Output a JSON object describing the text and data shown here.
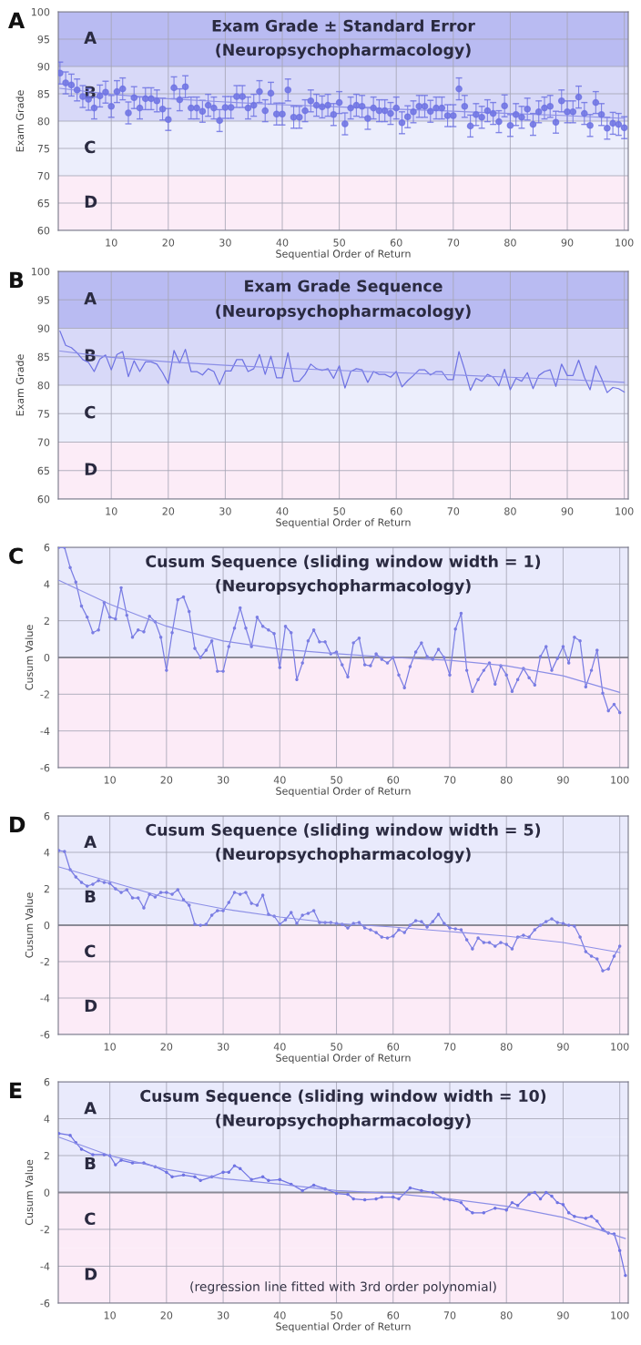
{
  "chart_data": [
    {
      "type": "scatter",
      "title": "Exam Grade ± Standard Error",
      "subtitle": "(Neuropsychopharmacology)",
      "xlabel": "Sequential Order of Return",
      "ylabel": "Exam Grade",
      "annotations": [
        "A"
      ],
      "x": [
        1,
        2,
        3,
        4,
        5,
        6,
        7,
        8,
        9,
        10,
        11,
        12,
        13,
        14,
        15,
        16,
        17,
        18,
        19,
        20,
        21,
        22,
        23,
        24,
        25,
        26,
        27,
        28,
        29,
        30,
        31,
        32,
        33,
        34,
        35,
        36,
        37,
        38,
        39,
        40,
        41,
        42,
        43,
        44,
        45,
        46,
        47,
        48,
        49,
        50,
        51,
        52,
        53,
        54,
        55,
        56,
        57,
        58,
        59,
        60,
        61,
        62,
        63,
        64,
        65,
        66,
        67,
        68,
        69,
        70,
        71,
        72,
        73,
        74,
        75,
        76,
        77,
        78,
        79,
        80,
        81,
        82,
        83,
        84,
        85,
        86,
        87,
        88,
        89,
        90,
        91,
        92,
        93,
        94,
        95,
        96,
        97,
        98,
        99,
        100
      ],
      "series": [
        {
          "marker": "circle",
          "color": "#6f73e3",
          "values": [
            88.8,
            87,
            86.6,
            85.7,
            84.5,
            84,
            82.4,
            84.6,
            85.3,
            82.7,
            85.4,
            85.9,
            81.5,
            84.3,
            82.4,
            84.1,
            84.1,
            83.7,
            82.2,
            80.3,
            86.1,
            83.9,
            86.3,
            82.4,
            82.4,
            81.8,
            82.9,
            82.4,
            80.1,
            82.5,
            82.5,
            84.5,
            84.5,
            82.4,
            82.9,
            85.4,
            81.9,
            85.1,
            81.3,
            81.3,
            85.7,
            80.7,
            80.7,
            81.9,
            83.7,
            82.9,
            82.6,
            82.9,
            81.2,
            83.4,
            79.5,
            82.4,
            82.9,
            82.7,
            80.5,
            82.4,
            81.9,
            81.9,
            81.4,
            82.4,
            79.7,
            80.8,
            81.7,
            82.7,
            82.7,
            81.8,
            82.4,
            82.4,
            81.0,
            81.0,
            85.9,
            82.7,
            79.1,
            81.2,
            80.7,
            81.9,
            81.4,
            79.9,
            82.8,
            79.2,
            81.2,
            80.7,
            82.2,
            79.4,
            81.7,
            82.4,
            82.7,
            79.8,
            83.7,
            81.7,
            81.7,
            84.4,
            81.4,
            79.2,
            83.4,
            81.2,
            78.7,
            79.6,
            79.4,
            78.8
          ],
          "errors": [
            2,
            2,
            2,
            2,
            2,
            2,
            2,
            2,
            2,
            2,
            2,
            2,
            2,
            2,
            2,
            2,
            2,
            2,
            2,
            2,
            2,
            2,
            2,
            2,
            2,
            2,
            2,
            2,
            2,
            2,
            2,
            2,
            2,
            2,
            2,
            2,
            2,
            2,
            2,
            2,
            2,
            2,
            2,
            2,
            2,
            2,
            2,
            2,
            2,
            2,
            2,
            2,
            2,
            2,
            2,
            2,
            2,
            2,
            2,
            2,
            2,
            2,
            2,
            2,
            2,
            2,
            2,
            2,
            2,
            2,
            2,
            2,
            2,
            2,
            2,
            2,
            2,
            2,
            2,
            2,
            2,
            2,
            2,
            2,
            2,
            2,
            2,
            2,
            2,
            2,
            2,
            2,
            2,
            2,
            2,
            2,
            2,
            2,
            2,
            2
          ]
        },
        {
          "type": "line",
          "marker": "none",
          "color": "#8c8fe6",
          "x": [
            1,
            10,
            20,
            30,
            40,
            50,
            60,
            70,
            80,
            90,
            100
          ],
          "values": [
            86,
            84.9,
            84.1,
            83.5,
            83,
            82.6,
            82.2,
            81.8,
            81.4,
            81,
            80.5
          ]
        }
      ],
      "bands": [
        {
          "axis": "y",
          "from": 90,
          "to": 100,
          "label": "A",
          "color": "#b9bbf2"
        },
        {
          "axis": "y",
          "from": 80,
          "to": 90,
          "label": "B",
          "color": "#d8d9f8"
        },
        {
          "axis": "y",
          "from": 70,
          "to": 80,
          "label": "C",
          "color": "#eceefc"
        },
        {
          "axis": "y",
          "from": 60,
          "to": 70,
          "label": "D",
          "color": "#fcecf7"
        }
      ],
      "xlim": [
        0.7,
        100.7
      ],
      "ylim": [
        60,
        100
      ],
      "xticks": [
        10,
        20,
        30,
        40,
        50,
        60,
        70,
        80,
        90,
        100
      ],
      "yticks": [
        60,
        65,
        70,
        75,
        80,
        85,
        90,
        95,
        100
      ],
      "grid": true
    },
    {
      "type": "line",
      "title": "Exam Grade Sequence",
      "subtitle": "(Neuropsychopharmacology)",
      "xlabel": "Sequential Order of Return",
      "ylabel": "Exam Grade",
      "annotations": [
        "B"
      ],
      "x": [
        1,
        2,
        3,
        4,
        5,
        6,
        7,
        8,
        9,
        10,
        11,
        12,
        13,
        14,
        15,
        16,
        17,
        18,
        19,
        20,
        21,
        22,
        23,
        24,
        25,
        26,
        27,
        28,
        29,
        30,
        31,
        32,
        33,
        34,
        35,
        36,
        37,
        38,
        39,
        40,
        41,
        42,
        43,
        44,
        45,
        46,
        47,
        48,
        49,
        50,
        51,
        52,
        53,
        54,
        55,
        56,
        57,
        58,
        59,
        60,
        61,
        62,
        63,
        64,
        65,
        66,
        67,
        68,
        69,
        70,
        71,
        72,
        73,
        74,
        75,
        76,
        77,
        78,
        79,
        80,
        81,
        82,
        83,
        84,
        85,
        86,
        87,
        88,
        89,
        90,
        91,
        92,
        93,
        94,
        95,
        96,
        97,
        98,
        99,
        100
      ],
      "series": [
        {
          "marker": "none",
          "color": "#6f73e3",
          "values": [
            89.5,
            87,
            86.6,
            85.7,
            84.5,
            84,
            82.4,
            84.6,
            85.3,
            82.7,
            85.4,
            85.9,
            81.5,
            84.3,
            82.4,
            84.1,
            84.1,
            83.7,
            82.2,
            80.3,
            86.1,
            83.9,
            86.3,
            82.4,
            82.4,
            81.8,
            82.9,
            82.4,
            80.1,
            82.5,
            82.5,
            84.5,
            84.5,
            82.4,
            82.9,
            85.4,
            81.9,
            85.1,
            81.3,
            81.3,
            85.7,
            80.7,
            80.7,
            81.9,
            83.7,
            82.9,
            82.6,
            82.9,
            81.2,
            83.4,
            79.5,
            82.4,
            82.9,
            82.7,
            80.5,
            82.4,
            81.9,
            81.9,
            81.4,
            82.4,
            79.7,
            80.8,
            81.7,
            82.7,
            82.7,
            81.8,
            82.4,
            82.4,
            81.0,
            81.0,
            85.9,
            82.7,
            79.1,
            81.2,
            80.7,
            81.9,
            81.4,
            79.9,
            82.8,
            79.2,
            81.2,
            80.7,
            82.2,
            79.4,
            81.7,
            82.4,
            82.7,
            79.8,
            83.7,
            81.7,
            81.7,
            84.4,
            81.4,
            79.2,
            83.4,
            81.2,
            78.7,
            79.6,
            79.4,
            78.8
          ]
        },
        {
          "type": "line",
          "marker": "none",
          "color": "#8c8fe6",
          "x": [
            1,
            10,
            20,
            30,
            40,
            50,
            60,
            70,
            80,
            90,
            100
          ],
          "values": [
            86,
            84.9,
            84.1,
            83.5,
            83,
            82.6,
            82.2,
            81.8,
            81.4,
            81,
            80.5
          ]
        }
      ],
      "bands": [
        {
          "axis": "y",
          "from": 90,
          "to": 100,
          "label": "A",
          "color": "#b9bbf2"
        },
        {
          "axis": "y",
          "from": 80,
          "to": 90,
          "label": "B",
          "color": "#d8d9f8"
        },
        {
          "axis": "y",
          "from": 70,
          "to": 80,
          "label": "C",
          "color": "#eceefc"
        },
        {
          "axis": "y",
          "from": 60,
          "to": 70,
          "label": "D",
          "color": "#fcecf7"
        }
      ],
      "xlim": [
        0.7,
        100.7
      ],
      "ylim": [
        60,
        100
      ],
      "xticks": [
        10,
        20,
        30,
        40,
        50,
        60,
        70,
        80,
        90,
        100
      ],
      "yticks": [
        60,
        65,
        70,
        75,
        80,
        85,
        90,
        95,
        100
      ],
      "grid": true
    },
    {
      "type": "line",
      "title": "Cusum Sequence (sliding window width = 1)",
      "subtitle": "(Neuropsychopharmacology)",
      "xlabel": "Sequential Order of Return",
      "ylabel": "Cusum Value",
      "annotations": [
        "C"
      ],
      "x": [
        1,
        2,
        3,
        4,
        5,
        6,
        7,
        8,
        9,
        10,
        11,
        12,
        13,
        14,
        15,
        16,
        17,
        18,
        19,
        20,
        21,
        22,
        23,
        24,
        25,
        26,
        27,
        28,
        29,
        30,
        31,
        32,
        33,
        34,
        35,
        36,
        37,
        38,
        39,
        40,
        41,
        42,
        43,
        44,
        45,
        46,
        47,
        48,
        49,
        50,
        51,
        52,
        53,
        54,
        55,
        56,
        57,
        58,
        59,
        60,
        61,
        62,
        63,
        64,
        65,
        66,
        67,
        68,
        69,
        70,
        71,
        72,
        73,
        74,
        75,
        76,
        77,
        78,
        79,
        80,
        81,
        82,
        83,
        84,
        85,
        86,
        87,
        88,
        89,
        90,
        91,
        92,
        93,
        94,
        95,
        96,
        97,
        98,
        99,
        100
      ],
      "series": [
        {
          "marker": "circle",
          "color": "#7a7de3",
          "values": [
            6.0,
            6.0,
            4.9,
            4.1,
            2.8,
            2.2,
            1.35,
            1.5,
            3.0,
            2.2,
            2.1,
            3.8,
            2.3,
            1.1,
            1.5,
            1.4,
            2.25,
            1.95,
            1.1,
            -0.7,
            1.35,
            3.15,
            3.3,
            2.5,
            0.5,
            0.0,
            0.4,
            0.9,
            -0.75,
            -0.75,
            0.6,
            1.6,
            2.7,
            1.6,
            0.6,
            2.2,
            1.7,
            1.5,
            1.3,
            -0.55,
            1.7,
            1.35,
            -1.2,
            -0.3,
            0.9,
            1.5,
            0.85,
            0.85,
            0.2,
            0.3,
            -0.4,
            -1.05,
            0.8,
            1.05,
            -0.4,
            -0.45,
            0.2,
            -0.1,
            -0.3,
            0.0,
            -0.95,
            -1.65,
            -0.5,
            0.3,
            0.8,
            0.05,
            -0.1,
            0.45,
            0.0,
            -0.95,
            1.55,
            2.4,
            -0.7,
            -1.85,
            -1.2,
            -0.7,
            -0.3,
            -1.45,
            -0.45,
            -0.95,
            -1.85,
            -1.2,
            -0.6,
            -1.1,
            -1.5,
            0.05,
            0.6,
            -0.7,
            -0.05,
            0.6,
            -0.3,
            1.1,
            0.9,
            -1.6,
            -0.7,
            0.4,
            -1.95,
            -2.9,
            -2.55,
            -3.0
          ]
        },
        {
          "type": "line",
          "marker": "none",
          "color": "#8c8fe6",
          "x": [
            1,
            10,
            20,
            30,
            40,
            50,
            60,
            70,
            80,
            90,
            100
          ],
          "values": [
            4.2,
            2.9,
            1.7,
            0.9,
            0.45,
            0.2,
            0.0,
            -0.15,
            -0.45,
            -1.0,
            -1.9
          ]
        }
      ],
      "bands": [
        {
          "axis": "y",
          "from": 0,
          "to": 6,
          "color": "#e9eafc"
        },
        {
          "axis": "y",
          "from": -6,
          "to": 0,
          "color": "#fcebf7"
        }
      ],
      "ref_lines": [
        {
          "axis": "y",
          "value": 0,
          "color": "#8a8a96"
        }
      ],
      "xlim": [
        0.9,
        101.5
      ],
      "ylim": [
        -6,
        6
      ],
      "xticks": [
        10,
        20,
        30,
        40,
        50,
        60,
        70,
        80,
        90,
        100
      ],
      "yticks": [
        -6,
        -4,
        -2,
        0,
        2,
        4,
        6
      ],
      "grid": true
    },
    {
      "type": "line",
      "title": "Cusum Sequence (sliding window width = 5)",
      "subtitle": "(Neuropsychopharmacology)",
      "xlabel": "Sequential Order of Return",
      "ylabel": "Cusum Value",
      "annotations": [
        "D"
      ],
      "x": [
        1,
        2,
        3,
        4,
        5,
        6,
        7,
        8,
        9,
        10,
        11,
        12,
        13,
        14,
        15,
        16,
        17,
        18,
        19,
        20,
        21,
        22,
        23,
        24,
        25,
        26,
        27,
        28,
        29,
        30,
        31,
        32,
        33,
        34,
        35,
        36,
        37,
        38,
        39,
        40,
        41,
        42,
        43,
        44,
        45,
        46,
        47,
        48,
        49,
        50,
        51,
        52,
        53,
        54,
        55,
        56,
        57,
        58,
        59,
        60,
        61,
        62,
        63,
        64,
        65,
        66,
        67,
        68,
        69,
        70,
        71,
        72,
        73,
        74,
        75,
        76,
        77,
        78,
        79,
        80,
        81,
        82,
        83,
        84,
        85,
        86,
        87,
        88,
        89,
        90,
        91,
        92,
        93,
        94,
        95,
        96,
        97,
        98,
        99,
        100
      ],
      "series": [
        {
          "marker": "circle",
          "color": "#7a7de3",
          "values": [
            4.1,
            4.05,
            3.05,
            2.65,
            2.35,
            2.15,
            2.25,
            2.45,
            2.35,
            2.3,
            2.0,
            1.8,
            1.95,
            1.5,
            1.5,
            0.95,
            1.7,
            1.55,
            1.8,
            1.8,
            1.7,
            1.95,
            1.4,
            1.1,
            0.05,
            0.0,
            0.05,
            0.55,
            0.8,
            0.8,
            1.25,
            1.8,
            1.7,
            1.8,
            1.2,
            1.1,
            1.65,
            0.6,
            0.5,
            0.05,
            0.3,
            0.7,
            0.1,
            0.55,
            0.65,
            0.8,
            0.15,
            0.15,
            0.15,
            0.1,
            0.05,
            -0.15,
            0.1,
            0.15,
            -0.15,
            -0.25,
            -0.4,
            -0.65,
            -0.7,
            -0.6,
            -0.25,
            -0.4,
            0.0,
            0.25,
            0.2,
            -0.1,
            0.2,
            0.6,
            0.1,
            -0.15,
            -0.2,
            -0.25,
            -0.8,
            -1.3,
            -0.7,
            -0.95,
            -0.95,
            -1.15,
            -0.95,
            -1.05,
            -1.3,
            -0.65,
            -0.55,
            -0.65,
            -0.25,
            0.0,
            0.2,
            0.35,
            0.15,
            0.1,
            0.0,
            -0.05,
            -0.65,
            -1.45,
            -1.7,
            -1.85,
            -2.5,
            -2.4,
            -1.7,
            -1.15
          ]
        },
        {
          "type": "line",
          "marker": "none",
          "color": "#8c8fe6",
          "x": [
            1,
            10,
            20,
            30,
            40,
            50,
            60,
            70,
            80,
            90,
            100
          ],
          "values": [
            3.2,
            2.4,
            1.5,
            0.9,
            0.45,
            0.1,
            -0.1,
            -0.35,
            -0.6,
            -0.95,
            -1.5
          ]
        }
      ],
      "bands": [
        {
          "axis": "y",
          "from": 3,
          "to": 6,
          "label": "A",
          "color": "#e9eafc"
        },
        {
          "axis": "y",
          "from": 0,
          "to": 3,
          "label": "B",
          "color": "#e9eafc"
        },
        {
          "axis": "y",
          "from": -3,
          "to": 0,
          "label": "C",
          "color": "#fcebf7"
        },
        {
          "axis": "y",
          "from": -6,
          "to": -3,
          "label": "D",
          "color": "#fcebf7"
        }
      ],
      "ref_lines": [
        {
          "axis": "y",
          "value": 0,
          "color": "#8a8a96"
        }
      ],
      "xlim": [
        0.9,
        101.5
      ],
      "ylim": [
        -6,
        6
      ],
      "xticks": [
        10,
        20,
        30,
        40,
        50,
        60,
        70,
        80,
        90,
        100
      ],
      "yticks": [
        -6,
        -4,
        -2,
        0,
        2,
        4,
        6
      ],
      "grid": true
    },
    {
      "type": "line",
      "title": "Cusum Sequence (sliding window width = 10)",
      "subtitle": "(Neuropsychopharmacology)",
      "xlabel": "Sequential Order of Return",
      "ylabel": "Cusum Value",
      "annotations": [
        "E",
        "(regression line fitted with 3rd order polynomial)"
      ],
      "series": [
        {
          "marker": "circle",
          "color": "#6f73e3",
          "x": [
            1,
            3,
            4,
            5,
            7,
            9,
            10,
            11,
            12,
            14,
            16,
            18,
            20,
            21,
            23,
            25,
            26,
            28,
            30,
            31,
            32,
            33,
            35,
            37,
            38,
            40,
            42,
            44,
            46,
            48,
            50,
            52,
            53,
            55,
            57,
            58,
            60,
            61,
            63,
            65,
            67,
            69,
            70,
            72,
            73,
            74,
            76,
            78,
            80,
            81,
            82,
            84,
            85,
            86,
            87,
            88,
            89,
            90,
            91,
            92,
            94,
            95,
            96,
            97,
            98,
            99,
            100,
            101
          ],
          "values": [
            3.2,
            3.1,
            2.7,
            2.35,
            2.05,
            2.05,
            2.0,
            1.5,
            1.75,
            1.6,
            1.6,
            1.4,
            1.1,
            0.85,
            0.95,
            0.85,
            0.65,
            0.85,
            1.1,
            1.1,
            1.45,
            1.3,
            0.7,
            0.85,
            0.65,
            0.7,
            0.45,
            0.1,
            0.4,
            0.2,
            -0.05,
            -0.1,
            -0.35,
            -0.4,
            -0.35,
            -0.25,
            -0.25,
            -0.35,
            0.25,
            0.1,
            0.0,
            -0.35,
            -0.4,
            -0.55,
            -0.9,
            -1.1,
            -1.1,
            -0.85,
            -0.95,
            -0.55,
            -0.7,
            -0.1,
            0.0,
            -0.35,
            0.0,
            -0.2,
            -0.55,
            -0.65,
            -1.1,
            -1.3,
            -1.4,
            -1.3,
            -1.55,
            -2.0,
            -2.2,
            -2.25,
            -3.15,
            -4.5
          ]
        },
        {
          "type": "line",
          "marker": "none",
          "color": "#8c8fe6",
          "x": [
            1,
            10,
            20,
            30,
            40,
            50,
            60,
            70,
            80,
            90,
            100,
            101
          ],
          "values": [
            3.0,
            2.0,
            1.25,
            0.75,
            0.45,
            0.1,
            -0.05,
            -0.35,
            -0.75,
            -1.35,
            -2.4,
            -2.5
          ]
        }
      ],
      "bands": [
        {
          "axis": "y",
          "from": 3,
          "to": 6,
          "label": "A",
          "color": "#e9eafc"
        },
        {
          "axis": "y",
          "from": 0,
          "to": 3,
          "label": "B",
          "color": "#e9eafc"
        },
        {
          "axis": "y",
          "from": -3,
          "to": 0,
          "label": "C",
          "color": "#fcebf7"
        },
        {
          "axis": "y",
          "from": -6,
          "to": -3,
          "label": "D",
          "color": "#fcebf7"
        }
      ],
      "ref_lines": [
        {
          "axis": "y",
          "value": 0,
          "color": "#8a8a96"
        }
      ],
      "xlim": [
        0.9,
        101.5
      ],
      "ylim": [
        -6,
        6
      ],
      "xticks": [
        10,
        20,
        30,
        40,
        50,
        60,
        70,
        80,
        90,
        100
      ],
      "yticks": [
        -6,
        -4,
        -2,
        0,
        2,
        4,
        6
      ],
      "grid": true
    }
  ]
}
